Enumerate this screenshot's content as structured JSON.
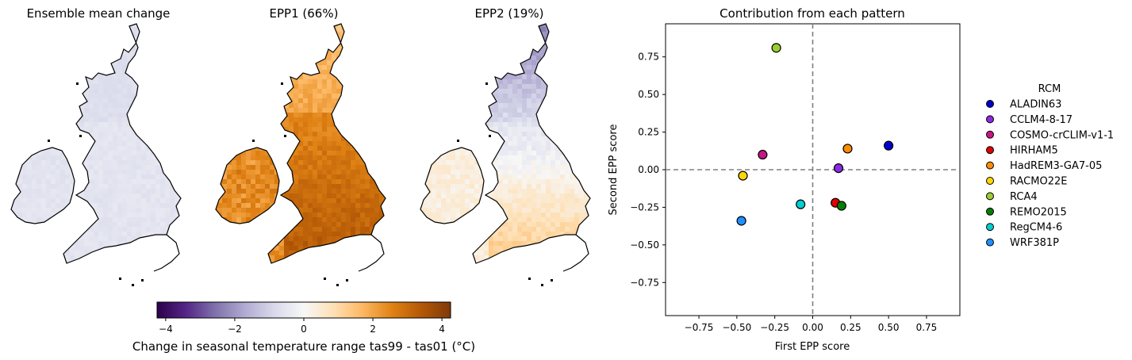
{
  "maps": {
    "panels": [
      {
        "title": "Ensemble mean change"
      },
      {
        "title": "EPP1 (66%)"
      },
      {
        "title": "EPP2 (19%)"
      }
    ],
    "colorbar": {
      "label": "Change in seasonal temperature range tas99 - tas01 (°C)",
      "ticks": [
        "−4",
        "−2",
        "0",
        "2",
        "4"
      ],
      "tick_values": [
        -4,
        -2,
        0,
        2,
        4
      ],
      "range": [
        -4.25,
        4.25
      ],
      "colormap": "PuOr_r",
      "colors": [
        "#2d004b",
        "#542788",
        "#8073ac",
        "#b2abd2",
        "#d8daeb",
        "#f7f7f7",
        "#fee0b6",
        "#fdb863",
        "#e08214",
        "#b35806",
        "#7f3b08"
      ]
    }
  },
  "chart_data": {
    "type": "scatter",
    "title": "Contribution from each pattern",
    "xlabel": "First EPP score",
    "ylabel": "Second EPP score",
    "xlim": [
      -0.97,
      0.97
    ],
    "ylim": [
      -0.97,
      0.97
    ],
    "xticks": [
      "−0.75",
      "−0.50",
      "−0.25",
      "0.00",
      "0.25",
      "0.50",
      "0.75"
    ],
    "xtick_values": [
      -0.75,
      -0.5,
      -0.25,
      0,
      0.25,
      0.5,
      0.75
    ],
    "yticks": [
      "0.75",
      "0.50",
      "0.25",
      "0.00",
      "−0.25",
      "−0.50",
      "−0.75"
    ],
    "ytick_values": [
      0.75,
      0.5,
      0.25,
      0,
      -0.25,
      -0.5,
      -0.75
    ],
    "reference_lines": {
      "x": 0,
      "y": 0,
      "style": "dashed"
    },
    "legend": {
      "title": "RCM",
      "placement": "outside-right"
    },
    "series": [
      {
        "name": "ALADIN63",
        "color": "#0000cd",
        "x": 0.5,
        "y": 0.16
      },
      {
        "name": "CCLM4-8-17",
        "color": "#8a2be2",
        "x": 0.17,
        "y": 0.01
      },
      {
        "name": "COSMO-crCLIM-v1-1",
        "color": "#c71585",
        "x": -0.33,
        "y": 0.1
      },
      {
        "name": "HIRHAM5",
        "color": "#e00000",
        "x": 0.15,
        "y": -0.22
      },
      {
        "name": "HadREM3-GA7-05",
        "color": "#ff8c00",
        "x": 0.23,
        "y": 0.14
      },
      {
        "name": "RACMO22E",
        "color": "#ffd700",
        "x": -0.46,
        "y": -0.04
      },
      {
        "name": "RCA4",
        "color": "#9acd32",
        "x": -0.24,
        "y": 0.81
      },
      {
        "name": "REMO2015",
        "color": "#008000",
        "x": 0.19,
        "y": -0.24
      },
      {
        "name": "RegCM4-6",
        "color": "#00ced1",
        "x": -0.08,
        "y": -0.23
      },
      {
        "name": "WRF381P",
        "color": "#1e90ff",
        "x": -0.47,
        "y": -0.34
      }
    ]
  }
}
